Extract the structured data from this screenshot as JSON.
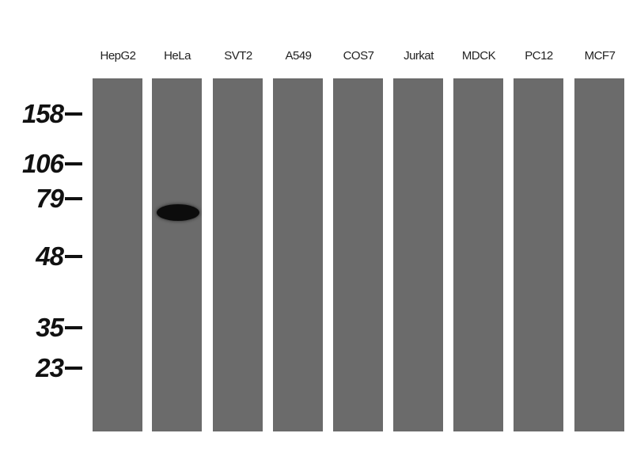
{
  "lanes": [
    {
      "label": "HepG2"
    },
    {
      "label": "HeLa"
    },
    {
      "label": "SVT2"
    },
    {
      "label": "A549"
    },
    {
      "label": "COS7"
    },
    {
      "label": "Jurkat"
    },
    {
      "label": "MDCK"
    },
    {
      "label": "PC12"
    },
    {
      "label": "MCF7"
    }
  ],
  "markers": [
    "158",
    "106",
    "79",
    "48",
    "35",
    "23"
  ],
  "band": {
    "lane": "HeLa",
    "approx_kda": "~70"
  },
  "colors": {
    "membrane": "#6b6b6b",
    "band": "#0c0c0c"
  }
}
